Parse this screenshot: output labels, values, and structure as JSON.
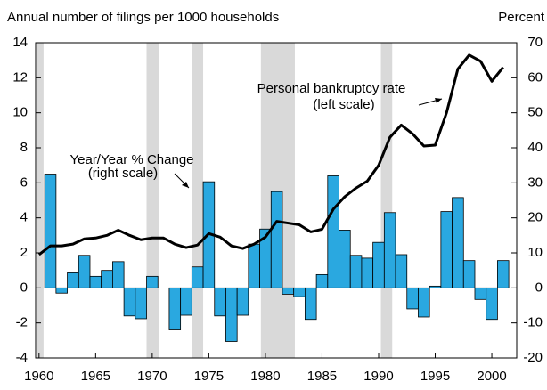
{
  "chart_data": {
    "type": "bar-line",
    "y_axis_label": "Annual number of filings per 1000 households",
    "y2_axis_label": "Percent",
    "x": [
      1960,
      1961,
      1962,
      1963,
      1964,
      1965,
      1966,
      1967,
      1968,
      1969,
      1970,
      1971,
      1972,
      1973,
      1974,
      1975,
      1976,
      1977,
      1978,
      1979,
      1980,
      1981,
      1982,
      1983,
      1984,
      1985,
      1986,
      1987,
      1988,
      1989,
      1990,
      1991,
      1992,
      1993,
      1994,
      1995,
      1996,
      1997,
      1998,
      1999,
      2000,
      2001
    ],
    "series": [
      {
        "type": "bar",
        "axis": "y2",
        "color": "#2aa8e0",
        "values": [
          null,
          32.5,
          -1.5,
          4.3,
          9.3,
          3.3,
          5,
          7.5,
          -8,
          -8.8,
          3.3,
          0,
          -12,
          -7.8,
          6,
          30.3,
          -8,
          -15.3,
          -7.8,
          12.5,
          16.8,
          27.5,
          -1.8,
          -2.5,
          -9,
          3.8,
          32,
          16.5,
          9.3,
          8.5,
          13,
          21.5,
          9.5,
          -6,
          -8.3,
          0.5,
          21.8,
          25.8,
          7.8,
          -3.3,
          -9,
          7.8
        ]
      },
      {
        "type": "line",
        "color": "#000000",
        "values": [
          1.9,
          2.4,
          2.4,
          2.5,
          2.8,
          2.85,
          3.0,
          3.3,
          3.0,
          2.75,
          2.85,
          2.85,
          2.5,
          2.3,
          2.45,
          3.1,
          2.9,
          2.4,
          2.25,
          2.5,
          2.9,
          3.8,
          3.7,
          3.6,
          3.2,
          3.35,
          4.5,
          5.2,
          5.7,
          6.1,
          7.0,
          8.6,
          9.3,
          8.8,
          8.1,
          8.15,
          10.0,
          12.5,
          13.3,
          12.95,
          11.8,
          12.6
        ]
      }
    ],
    "shaded_periods": [
      [
        1959.8,
        1960.4
      ],
      [
        1969.5,
        1970.6
      ],
      [
        1973.5,
        1974.5
      ],
      [
        1979.6,
        1982.6
      ],
      [
        1990.2,
        1991.2
      ]
    ],
    "shade_color": "#d9d9d9",
    "annotations": [
      {
        "lines": [
          "Personal bankruptcy rate",
          "(left scale)"
        ]
      },
      {
        "lines": [
          "Year/Year % Change",
          "(right scale)"
        ]
      }
    ],
    "xlim": [
      1959.7,
      2002.2
    ],
    "xticks": [
      1960,
      1965,
      1970,
      1975,
      1980,
      1985,
      1990,
      1995,
      2000
    ],
    "ylim": [
      -4,
      14
    ],
    "yticks": [
      -4,
      -2,
      0,
      2,
      4,
      6,
      8,
      10,
      12,
      14
    ],
    "y2lim": [
      -20,
      70
    ],
    "y2ticks": [
      -20,
      -10,
      0,
      10,
      20,
      30,
      40,
      50,
      60,
      70
    ]
  }
}
